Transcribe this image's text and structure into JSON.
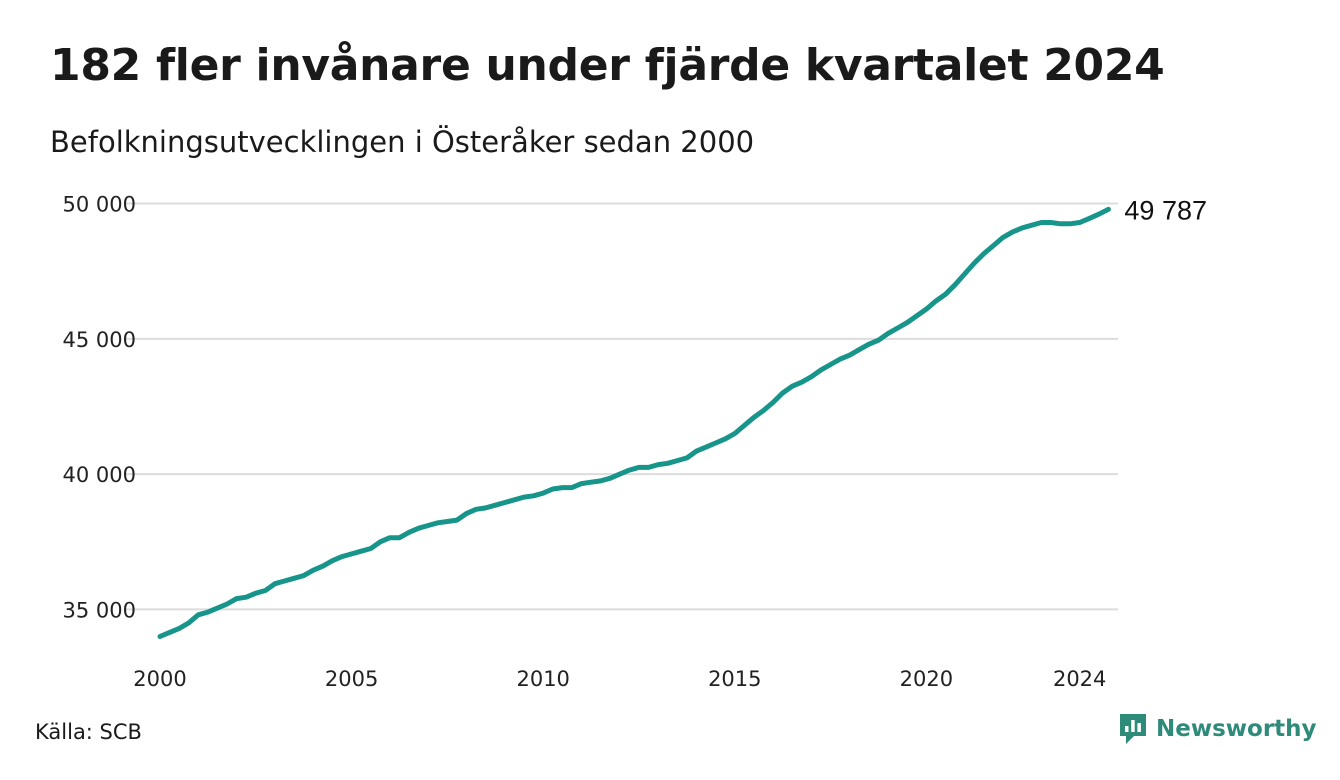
{
  "title": "182 fler invånare under fjärde kvartalet 2024",
  "subtitle": "Befolkningsutvecklingen i Österåker sedan 2000",
  "source": "Källa: SCB",
  "brand": {
    "name": "Newsworthy",
    "color": "#2e8b7a"
  },
  "chart_data": {
    "type": "line",
    "line_color": "#17958a",
    "grid": true,
    "ylim": [
      33500,
      50500
    ],
    "yticks": [
      35000,
      40000,
      45000,
      50000
    ],
    "ytick_labels": [
      "35 000",
      "40 000",
      "45 000",
      "50 000"
    ],
    "xlim": [
      2000.0,
      2025.0
    ],
    "xticks": [
      2000,
      2005,
      2010,
      2015,
      2020,
      2024
    ],
    "xtick_labels": [
      "2000",
      "2005",
      "2010",
      "2015",
      "2020",
      "2024"
    ],
    "end_label": "49 787",
    "series": [
      {
        "x": [
          2000.0,
          2000.25,
          2000.5,
          2000.75,
          2001.0,
          2001.25,
          2001.5,
          2001.75,
          2002.0,
          2002.25,
          2002.5,
          2002.75,
          2003.0,
          2003.25,
          2003.5,
          2003.75,
          2004.0,
          2004.25,
          2004.5,
          2004.75,
          2005.0,
          2005.25,
          2005.5,
          2005.75,
          2006.0,
          2006.25,
          2006.5,
          2006.75,
          2007.0,
          2007.25,
          2007.5,
          2007.75,
          2008.0,
          2008.25,
          2008.5,
          2008.75,
          2009.0,
          2009.25,
          2009.5,
          2009.75,
          2010.0,
          2010.25,
          2010.5,
          2010.75,
          2011.0,
          2011.25,
          2011.5,
          2011.75,
          2012.0,
          2012.25,
          2012.5,
          2012.75,
          2013.0,
          2013.25,
          2013.5,
          2013.75,
          2014.0,
          2014.25,
          2014.5,
          2014.75,
          2015.0,
          2015.25,
          2015.5,
          2015.75,
          2016.0,
          2016.25,
          2016.5,
          2016.75,
          2017.0,
          2017.25,
          2017.5,
          2017.75,
          2018.0,
          2018.25,
          2018.5,
          2018.75,
          2019.0,
          2019.25,
          2019.5,
          2019.75,
          2020.0,
          2020.25,
          2020.5,
          2020.75,
          2021.0,
          2021.25,
          2021.5,
          2021.75,
          2022.0,
          2022.25,
          2022.5,
          2022.75,
          2023.0,
          2023.25,
          2023.5,
          2023.75,
          2024.0,
          2024.25,
          2024.5,
          2024.75
        ],
        "values": [
          34000,
          34150,
          34300,
          34500,
          34800,
          34900,
          35050,
          35200,
          35400,
          35450,
          35600,
          35700,
          35950,
          36050,
          36150,
          36250,
          36450,
          36600,
          36800,
          36950,
          37050,
          37150,
          37250,
          37500,
          37650,
          37650,
          37850,
          38000,
          38100,
          38200,
          38250,
          38300,
          38550,
          38700,
          38750,
          38850,
          38950,
          39050,
          39150,
          39200,
          39300,
          39450,
          39500,
          39500,
          39650,
          39700,
          39750,
          39850,
          40000,
          40150,
          40250,
          40250,
          40350,
          40400,
          40500,
          40600,
          40850,
          41000,
          41150,
          41300,
          41500,
          41800,
          42100,
          42350,
          42650,
          43000,
          43250,
          43400,
          43600,
          43850,
          44050,
          44250,
          44400,
          44600,
          44800,
          44950,
          45200,
          45400,
          45600,
          45850,
          46100,
          46400,
          46650,
          47000,
          47400,
          47800,
          48150,
          48450,
          48750,
          48950,
          49100,
          49200,
          49300,
          49300,
          49250,
          49250,
          49300,
          49450,
          49605,
          49787
        ]
      }
    ]
  }
}
